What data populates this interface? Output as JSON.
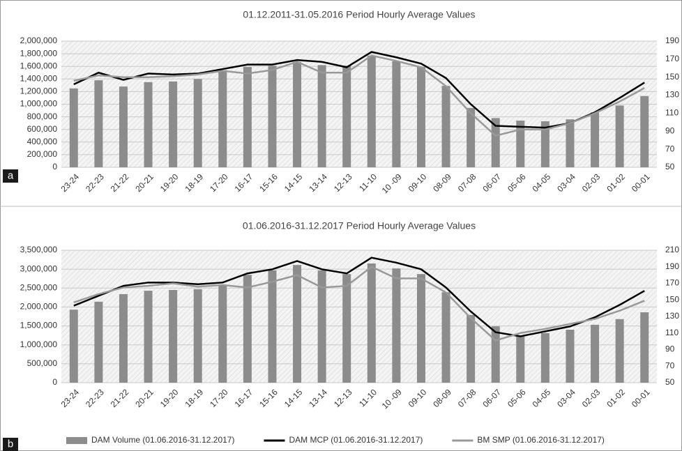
{
  "chart_data": [
    {
      "type": "bar-line",
      "title": "01.12.2011-31.05.2016 Period Hourly Average Values",
      "panel_label": "a",
      "categories": [
        "23-24",
        "22-23",
        "21-22",
        "20-21",
        "19-20",
        "18-19",
        "17-20",
        "16-17",
        "15-16",
        "14-15",
        "13-14",
        "12-13",
        "11-10",
        "10 -09",
        "09-10",
        "08-09",
        "07-08",
        "06-07",
        "05-06",
        "04-05",
        "03-04",
        "02-03",
        "01-02",
        "00-01"
      ],
      "series": [
        {
          "type": "bar",
          "color": "#8c8c8c",
          "values": [
            1250000,
            1380000,
            1280000,
            1350000,
            1360000,
            1400000,
            1540000,
            1590000,
            1610000,
            1670000,
            1620000,
            1610000,
            1770000,
            1680000,
            1590000,
            1290000,
            940000,
            780000,
            740000,
            730000,
            760000,
            870000,
            980000,
            1130000
          ]
        },
        {
          "type": "line",
          "axis": "y2",
          "color": "#000000",
          "values": [
            142,
            155,
            147,
            154,
            153,
            154,
            159,
            164,
            164,
            169,
            167,
            161,
            178,
            172,
            165,
            149,
            120,
            96,
            95,
            94,
            99,
            111,
            127,
            144
          ]
        },
        {
          "type": "line",
          "axis": "y2",
          "color": "#999999",
          "values": [
            146,
            152,
            150,
            150,
            151,
            153,
            157,
            154,
            158,
            167,
            155,
            155,
            174,
            168,
            161,
            140,
            110,
            85,
            92,
            92,
            99,
            110,
            123,
            138
          ]
        }
      ],
      "ylim": [
        0,
        2000000
      ],
      "yticks": [
        0,
        {
          "value": 200000,
          "label": "200,000"
        },
        {
          "value": 400000,
          "label": "400,000"
        },
        {
          "value": 600000,
          "label": "600,000"
        },
        {
          "value": 800000,
          "label": "800,000"
        },
        {
          "value": 1000000,
          "label": "1,000,000"
        },
        {
          "value": 1200000,
          "label": "1,200,000"
        },
        {
          "value": 1400000,
          "label": "1,400,000"
        },
        {
          "value": 1600000,
          "label": "1,600,000"
        },
        {
          "value": 1800000,
          "label": "1,800,000"
        },
        {
          "value": 2000000,
          "label": "2,000,000"
        }
      ],
      "y2lim": [
        50,
        190
      ],
      "y2ticks": [
        50,
        70,
        90,
        110,
        130,
        150,
        170,
        190
      ],
      "grid": true
    },
    {
      "type": "bar-line",
      "title": "01.06.2016-31.12.2017 Period Hourly Average Values",
      "panel_label": "b",
      "categories": [
        "23-24",
        "22-23",
        "21-22",
        "20-21",
        "19-20",
        "18-19",
        "17-20",
        "16-17",
        "15-16",
        "14-15",
        "13-14",
        "12-13",
        "11-10",
        "10 -09",
        "09-10",
        "08-09",
        "07-08",
        "06-07",
        "05-06",
        "04-05",
        "03-04",
        "02-03",
        "01-02",
        "00-01"
      ],
      "series": [
        {
          "type": "bar",
          "name": "DAM Volume (01.06.2016-31.12.2017)",
          "color": "#8c8c8c",
          "values": [
            1930000,
            2140000,
            2340000,
            2430000,
            2450000,
            2470000,
            2580000,
            2850000,
            2970000,
            3110000,
            2970000,
            2870000,
            3150000,
            3020000,
            2870000,
            2390000,
            1790000,
            1490000,
            1250000,
            1310000,
            1400000,
            1530000,
            1680000,
            1860000
          ]
        },
        {
          "type": "line",
          "axis": "y2",
          "name": "DAM MCP (01.06.2016-31.12.2017)",
          "color": "#000000",
          "values": [
            143,
            155,
            167,
            171,
            171,
            169,
            171,
            182,
            187,
            197,
            187,
            182,
            201,
            195,
            187,
            165,
            136,
            111,
            106,
            112,
            118,
            129,
            144,
            161
          ]
        },
        {
          "type": "line",
          "axis": "y2",
          "name": "BM SMP (01.06.2016-31.12.2017)",
          "color": "#999999",
          "values": [
            147,
            157,
            165,
            167,
            170,
            166,
            168,
            165,
            172,
            180,
            165,
            167,
            190,
            176,
            176,
            159,
            128,
            101,
            110,
            115,
            121,
            127,
            137,
            149
          ]
        }
      ],
      "ylim": [
        0,
        3500000
      ],
      "yticks": [
        0,
        {
          "value": 500000,
          "label": "500,000"
        },
        {
          "value": 1000000,
          "label": "1,000,000"
        },
        {
          "value": 1500000,
          "label": "1,500,000"
        },
        {
          "value": 2000000,
          "label": "2,000,000"
        },
        {
          "value": 2500000,
          "label": "2,500,000"
        },
        {
          "value": 3000000,
          "label": "3,000,000"
        },
        {
          "value": 3500000,
          "label": "3,500,000"
        }
      ],
      "y2lim": [
        50,
        210
      ],
      "y2ticks": [
        50,
        70,
        90,
        110,
        130,
        150,
        170,
        190,
        210
      ],
      "grid": true
    }
  ]
}
